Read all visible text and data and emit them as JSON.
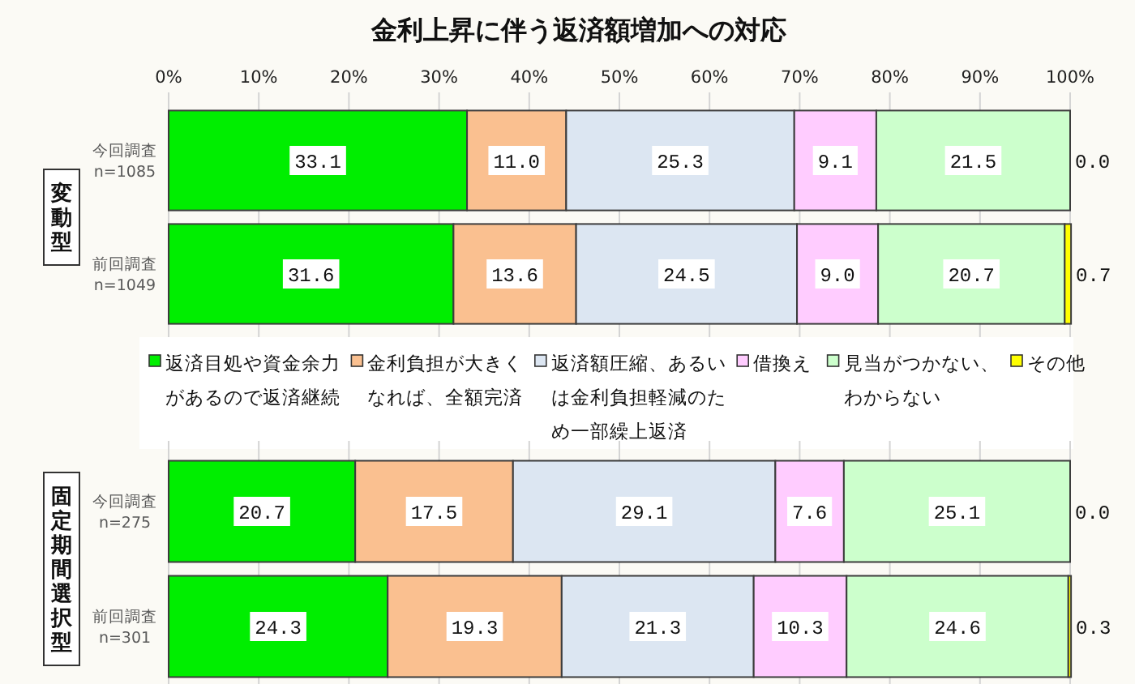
{
  "chart_data": [
    {
      "type": "bar",
      "orientation": "horizontal",
      "stacked": true,
      "title": "金利上昇に伴う返済額増加への対応",
      "ylabel": "変動型",
      "categories": [
        "今回調査\nn=1085",
        "前回調査\nn=1049"
      ],
      "series": [
        {
          "name": "返済目処や資金余力があるので返済継続",
          "color": "#00ee00",
          "values": [
            33.1,
            31.6
          ],
          "value_labels": [
            "33.1",
            "31.6"
          ]
        },
        {
          "name": "金利負担が大きくなれば、全額完済",
          "color": "#fac090",
          "values": [
            11.0,
            13.6
          ],
          "value_labels": [
            "11.0",
            "13.6"
          ]
        },
        {
          "name": "返済額圧縮、あるいは金利負担軽減のため一部繰上返済",
          "color": "#dce6f2",
          "values": [
            25.3,
            24.5
          ],
          "value_labels": [
            "25.3",
            "24.5"
          ]
        },
        {
          "name": "借換え",
          "color": "#ffccff",
          "values": [
            9.1,
            9.0
          ],
          "value_labels": [
            "9.1",
            "9.0"
          ]
        },
        {
          "name": "見当がつかない、わからない",
          "color": "#ccffcc",
          "values": [
            21.5,
            20.7
          ],
          "value_labels": [
            "21.5",
            "20.7"
          ]
        },
        {
          "name": "その他",
          "color": "#ffff00",
          "values": [
            0.0,
            0.7
          ],
          "value_labels": [
            "0.0",
            "0.7"
          ]
        }
      ],
      "xlim": [
        0,
        100
      ],
      "xticks": [
        {
          "value": 0,
          "label": "0%"
        },
        {
          "value": 10,
          "label": "10%"
        },
        {
          "value": 20,
          "label": "20%"
        },
        {
          "value": 30,
          "label": "30%"
        },
        {
          "value": 40,
          "label": "40%"
        },
        {
          "value": 50,
          "label": "50%"
        },
        {
          "value": 60,
          "label": "60%"
        },
        {
          "value": 70,
          "label": "70%"
        },
        {
          "value": 80,
          "label": "80%"
        },
        {
          "value": 90,
          "label": "90%"
        },
        {
          "value": 100,
          "label": "100%"
        }
      ],
      "grid": "x",
      "legend": "bottom"
    },
    {
      "type": "bar",
      "orientation": "horizontal",
      "stacked": true,
      "ylabel": "固定期間選択型",
      "categories": [
        "今回調査\nn=275",
        "前回調査\nn=301"
      ],
      "series": [
        {
          "color": "#00ee00",
          "values": [
            20.7,
            24.3
          ],
          "value_labels": [
            "20.7",
            "24.3"
          ]
        },
        {
          "color": "#fac090",
          "values": [
            17.5,
            19.3
          ],
          "value_labels": [
            "17.5",
            "19.3"
          ]
        },
        {
          "color": "#dce6f2",
          "values": [
            29.1,
            21.3
          ],
          "value_labels": [
            "29.1",
            "21.3"
          ]
        },
        {
          "color": "#ffccff",
          "values": [
            7.6,
            10.3
          ],
          "value_labels": [
            "7.6",
            "10.3"
          ]
        },
        {
          "color": "#ccffcc",
          "values": [
            25.1,
            24.6
          ],
          "value_labels": [
            "25.1",
            "24.6"
          ]
        },
        {
          "color": "#ffff00",
          "values": [
            0.0,
            0.3
          ],
          "value_labels": [
            "0.0",
            "0.3"
          ]
        }
      ],
      "xlim": [
        0,
        100
      ],
      "xticks": [
        0,
        10,
        20,
        30,
        40,
        50,
        60,
        70,
        80,
        90,
        100
      ],
      "grid": "x",
      "tick_labels": "y"
    }
  ]
}
